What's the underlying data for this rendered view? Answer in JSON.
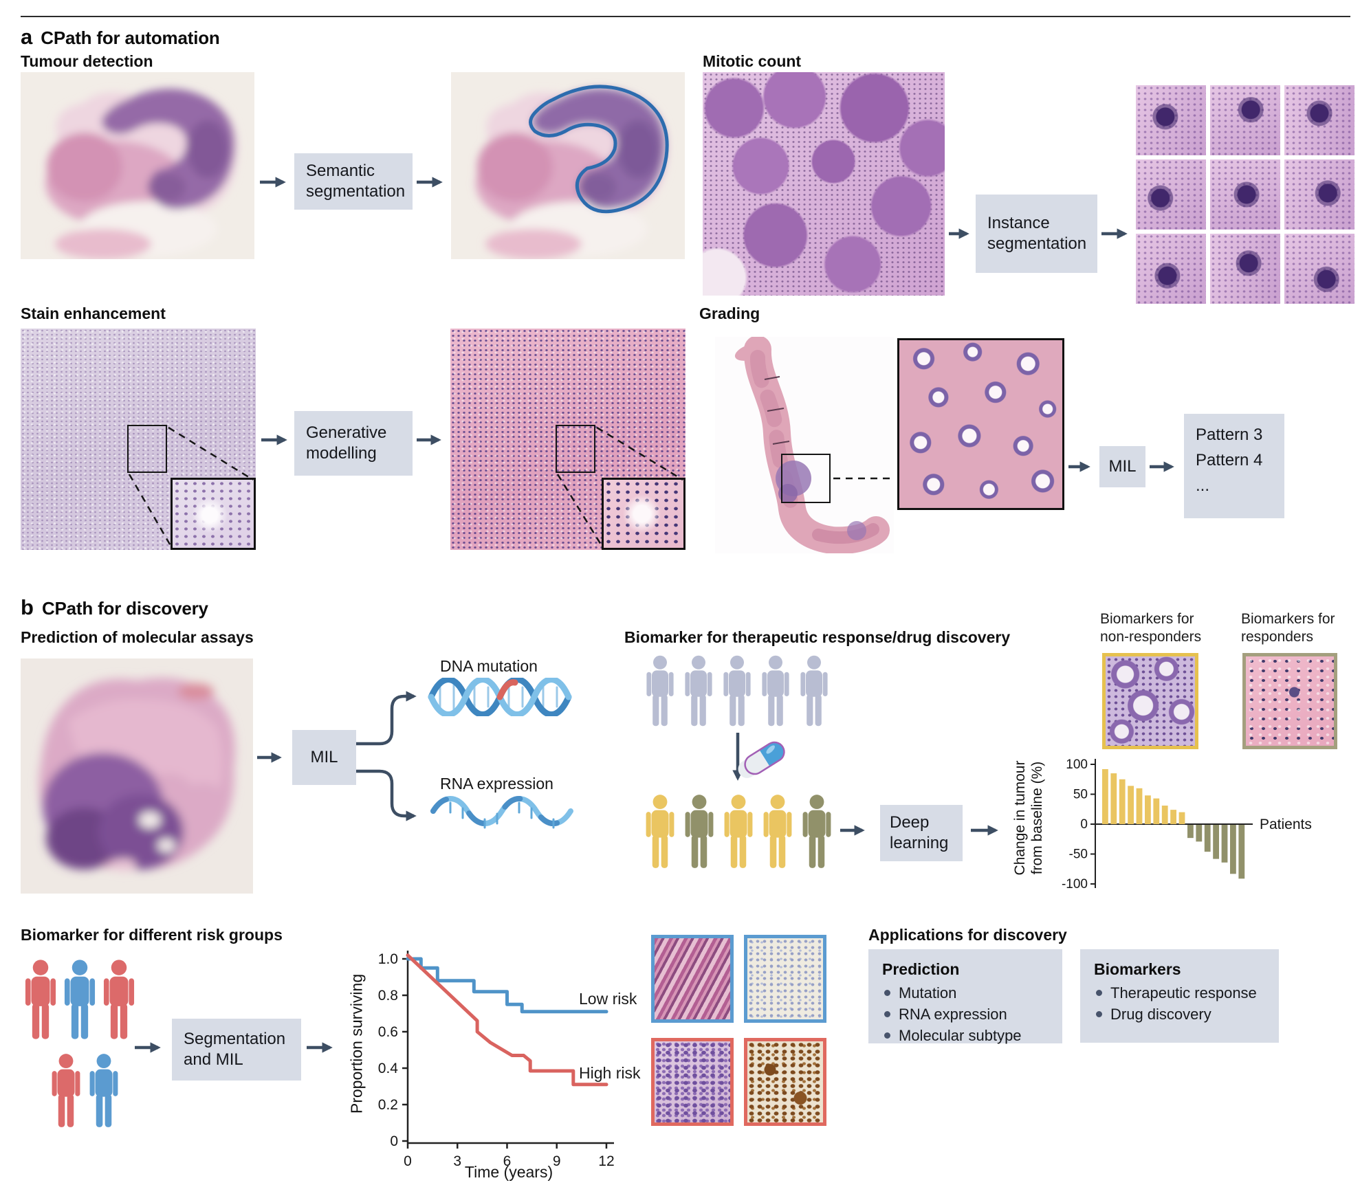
{
  "figure": {
    "panel_a_letter": "a",
    "panel_a_title": "CPath for automation",
    "panel_b_letter": "b",
    "panel_b_title": "CPath for discovery"
  },
  "colors": {
    "arrow": "#3d4e63",
    "label_box_bg": "#d7dce6",
    "nonresponder_yellow": "#eac561",
    "responder_olive": "#91916a",
    "patient_gray": "#b8bdd2",
    "risk_red": "#dc6a6a",
    "risk_blue": "#5b9bd0",
    "tumour_outline_blue": "#2c6cae"
  },
  "tumour_detection": {
    "title": "Tumour detection",
    "box_label": "Semantic segmentation"
  },
  "mitotic_count": {
    "title": "Mitotic count",
    "box_label": "Instance segmentation"
  },
  "stain_enhancement": {
    "title": "Stain enhancement",
    "box_label": "Generative modelling"
  },
  "grading": {
    "title": "Grading",
    "box_label": "MIL",
    "output_lines": [
      "Pattern 3",
      "Pattern 4",
      "..."
    ]
  },
  "molecular_assays": {
    "title": "Prediction of molecular assays",
    "box_label": "MIL",
    "output_dna": "DNA mutation",
    "output_rna": "RNA expression"
  },
  "therapeutic": {
    "title": "Biomarker for therapeutic response/drug discovery",
    "box_label": "Deep learning",
    "pre_treatment_colors": [
      "#b8bdd2",
      "#b8bdd2",
      "#b8bdd2",
      "#b8bdd2",
      "#b8bdd2"
    ],
    "post_treatment_colors": [
      "#eac561",
      "#91916a",
      "#eac561",
      "#eac561",
      "#91916a"
    ],
    "nonresponders_label": "Biomarkers for non-responders",
    "responders_label": "Biomarkers for responders"
  },
  "risk_groups": {
    "title": "Biomarker for different risk groups",
    "box_label": "Segmentation and MIL",
    "row1_colors": [
      "#dc6a6a",
      "#5b9bd0",
      "#dc6a6a"
    ],
    "row2_colors": [
      "#dc6a6a",
      "#5b9bd0"
    ]
  },
  "applications": {
    "title": "Applications for discovery",
    "prediction_title": "Prediction",
    "prediction_items": [
      "Mutation",
      "RNA expression",
      "Molecular subtype"
    ],
    "biomarkers_title": "Biomarkers",
    "biomarkers_items": [
      "Therapeutic response",
      "Drug discovery"
    ]
  },
  "chart_data": [
    {
      "id": "waterfall_change_from_baseline",
      "type": "bar",
      "title": "",
      "xlabel": "Patients",
      "ylabel": "Change in tumour from baseline (%)",
      "ylim": [
        -100,
        100
      ],
      "yticks": [
        100,
        50,
        0,
        -50,
        -100
      ],
      "grid": false,
      "legend_position": "none",
      "series": [
        {
          "name": "Non-responders",
          "color": "#eac561",
          "values": [
            92,
            85,
            75,
            64,
            60,
            48,
            43,
            31,
            24,
            20
          ]
        },
        {
          "name": "Responders",
          "color": "#91916a",
          "values": [
            -22,
            -28,
            -45,
            -57,
            -63,
            -82,
            -90
          ]
        }
      ]
    },
    {
      "id": "kaplan_meier_survival",
      "type": "line",
      "title": "",
      "xlabel": "Time (years)",
      "ylabel": "Proportion surviving",
      "xlim": [
        0,
        12
      ],
      "ylim": [
        0,
        1.0
      ],
      "xticks": [
        0,
        3,
        6,
        9,
        12
      ],
      "yticks": [
        0,
        0.2,
        0.4,
        0.6,
        0.8,
        1.0
      ],
      "grid": false,
      "legend_position": "inline-right",
      "series": [
        {
          "name": "Low risk",
          "color": "#4f93c8",
          "points": [
            [
              0,
              1.0
            ],
            [
              0.8,
              1.0
            ],
            [
              0.8,
              0.95
            ],
            [
              1.8,
              0.95
            ],
            [
              1.8,
              0.88
            ],
            [
              4.0,
              0.88
            ],
            [
              4.0,
              0.82
            ],
            [
              6.0,
              0.82
            ],
            [
              6.0,
              0.75
            ],
            [
              6.9,
              0.75
            ],
            [
              6.9,
              0.71
            ],
            [
              12,
              0.71
            ]
          ]
        },
        {
          "name": "High risk",
          "color": "#d9635f",
          "points": [
            [
              0,
              1.02
            ],
            [
              4.2,
              0.66
            ],
            [
              4.2,
              0.6
            ],
            [
              5.0,
              0.54
            ],
            [
              6.3,
              0.47
            ],
            [
              7.0,
              0.47
            ],
            [
              7.4,
              0.44
            ],
            [
              7.4,
              0.385
            ],
            [
              10,
              0.385
            ],
            [
              10,
              0.31
            ],
            [
              12,
              0.31
            ]
          ]
        }
      ]
    }
  ]
}
